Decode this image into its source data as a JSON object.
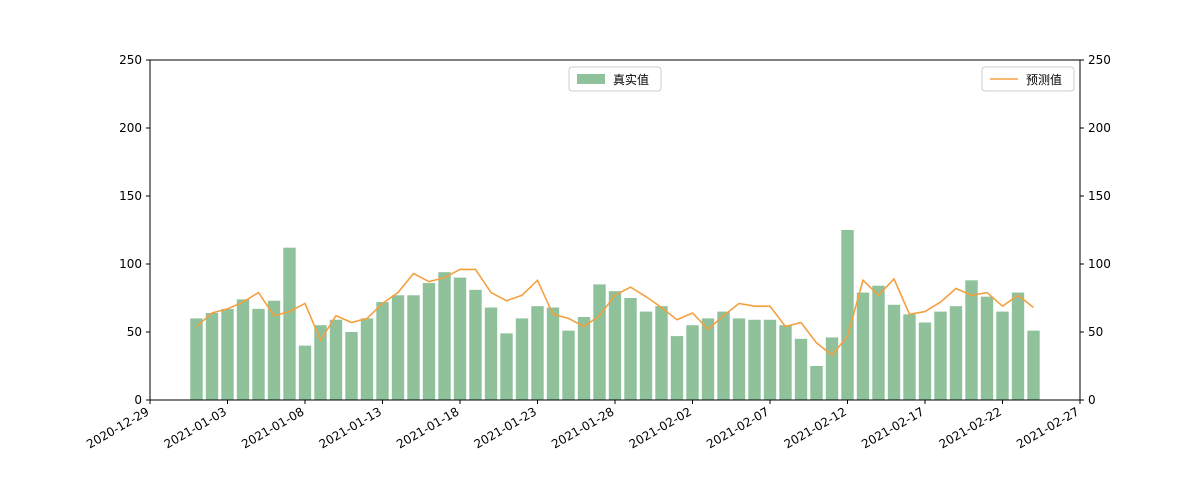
{
  "chart_data": {
    "type": "bar",
    "x": [
      "2021-01-01",
      "2021-01-02",
      "2021-01-03",
      "2021-01-04",
      "2021-01-05",
      "2021-01-06",
      "2021-01-07",
      "2021-01-08",
      "2021-01-09",
      "2021-01-10",
      "2021-01-11",
      "2021-01-12",
      "2021-01-13",
      "2021-01-14",
      "2021-01-15",
      "2021-01-16",
      "2021-01-17",
      "2021-01-18",
      "2021-01-19",
      "2021-01-20",
      "2021-01-21",
      "2021-01-22",
      "2021-01-23",
      "2021-01-24",
      "2021-01-25",
      "2021-01-26",
      "2021-01-27",
      "2021-01-28",
      "2021-01-29",
      "2021-01-30",
      "2021-01-31",
      "2021-02-01",
      "2021-02-02",
      "2021-02-03",
      "2021-02-04",
      "2021-02-05",
      "2021-02-06",
      "2021-02-07",
      "2021-02-08",
      "2021-02-09",
      "2021-02-10",
      "2021-02-11",
      "2021-02-12",
      "2021-02-13",
      "2021-02-14",
      "2021-02-15",
      "2021-02-16",
      "2021-02-17",
      "2021-02-18",
      "2021-02-19",
      "2021-02-20",
      "2021-02-21",
      "2021-02-22",
      "2021-02-23",
      "2021-02-24"
    ],
    "series": [
      {
        "name": "真实值",
        "type": "bar",
        "color": "#8fc29b",
        "legend": "upper center",
        "values": [
          60,
          64,
          67,
          74,
          67,
          73,
          112,
          40,
          55,
          59,
          50,
          60,
          72,
          77,
          77,
          86,
          94,
          90,
          81,
          68,
          49,
          60,
          69,
          68,
          51,
          61,
          85,
          80,
          75,
          65,
          69,
          47,
          55,
          60,
          65,
          60,
          59,
          59,
          55,
          45,
          25,
          46,
          125,
          79,
          84,
          70,
          63,
          57,
          65,
          69,
          88,
          76,
          65,
          79,
          51
        ]
      },
      {
        "name": "预测值",
        "type": "line",
        "axis": "y2",
        "color": "#f5a040",
        "legend": "upper right",
        "values": [
          54,
          64,
          67,
          72,
          79,
          62,
          65,
          71,
          44,
          62,
          57,
          60,
          71,
          79,
          93,
          87,
          90,
          96,
          96,
          79,
          73,
          77,
          88,
          63,
          60,
          54,
          62,
          77,
          83,
          76,
          68,
          59,
          64,
          52,
          62,
          71,
          69,
          69,
          54,
          57,
          42,
          33,
          47,
          88,
          77,
          89,
          63,
          65,
          72,
          82,
          77,
          79,
          69,
          77,
          68
        ]
      }
    ],
    "xlim": [
      "2020-12-29",
      "2021-02-27"
    ],
    "xticks": [
      "2020-12-29",
      "2021-01-03",
      "2021-01-08",
      "2021-01-13",
      "2021-01-18",
      "2021-01-23",
      "2021-01-28",
      "2021-02-02",
      "2021-02-07",
      "2021-02-12",
      "2021-02-17",
      "2021-02-22",
      "2021-02-27"
    ],
    "ylim": [
      0,
      250
    ],
    "yticks": [
      0,
      50,
      100,
      150,
      200,
      250
    ],
    "y2lim": [
      0,
      250
    ],
    "y2ticks": [
      0,
      50,
      100,
      150,
      200,
      250
    ]
  }
}
